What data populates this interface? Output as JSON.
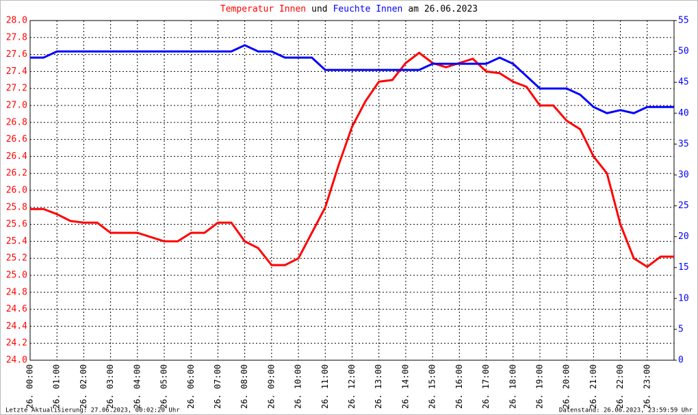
{
  "chart_data": {
    "type": "line",
    "title_parts": [
      {
        "text": "Temperatur Innen",
        "color": "#ff0000"
      },
      {
        "text": "und",
        "color": "#000000"
      },
      {
        "text": "Feuchte Innen",
        "color": "#0000ff"
      },
      {
        "text": "am 26.06.2023",
        "color": "#000000"
      }
    ],
    "footer_left": "Letzte Aktualisierung: 27.06.2023, 00:02:20 Uhr",
    "footer_right": "Datenstand: 26.06.2023, 23:59:59 Uhr",
    "x": [
      0,
      0.5,
      1,
      1.5,
      2,
      2.5,
      3,
      3.5,
      4,
      4.5,
      5,
      5.5,
      6,
      6.5,
      7,
      7.5,
      8,
      8.5,
      9,
      9.5,
      10,
      10.5,
      11,
      11.5,
      12,
      12.5,
      13,
      13.5,
      14,
      14.5,
      15,
      15.5,
      16,
      16.5,
      17,
      17.5,
      18,
      18.5,
      19,
      19.5,
      20,
      20.5,
      21,
      21.5,
      22,
      22.5,
      23,
      23.5,
      24
    ],
    "xlim": [
      0,
      24
    ],
    "xticks": [
      {
        "value": 0,
        "label": "26. 00:00"
      },
      {
        "value": 1,
        "label": "26. 01:00"
      },
      {
        "value": 2,
        "label": "26. 02:00"
      },
      {
        "value": 3,
        "label": "26. 03:00"
      },
      {
        "value": 4,
        "label": "26. 04:00"
      },
      {
        "value": 5,
        "label": "26. 05:00"
      },
      {
        "value": 6,
        "label": "26. 06:00"
      },
      {
        "value": 7,
        "label": "26. 07:00"
      },
      {
        "value": 8,
        "label": "26. 08:00"
      },
      {
        "value": 9,
        "label": "26. 09:00"
      },
      {
        "value": 10,
        "label": "26. 10:00"
      },
      {
        "value": 11,
        "label": "26. 11:00"
      },
      {
        "value": 12,
        "label": "26. 12:00"
      },
      {
        "value": 13,
        "label": "26. 13:00"
      },
      {
        "value": 14,
        "label": "26. 14:00"
      },
      {
        "value": 15,
        "label": "26. 15:00"
      },
      {
        "value": 16,
        "label": "26. 16:00"
      },
      {
        "value": 17,
        "label": "26. 17:00"
      },
      {
        "value": 18,
        "label": "26. 18:00"
      },
      {
        "value": 19,
        "label": "26. 19:00"
      },
      {
        "value": 20,
        "label": "26. 20:00"
      },
      {
        "value": 21,
        "label": "26. 21:00"
      },
      {
        "value": 22,
        "label": "26. 22:00"
      },
      {
        "value": 23,
        "label": "26. 23:00"
      }
    ],
    "ylim": [
      24,
      28
    ],
    "yticks": [
      {
        "value": 24,
        "label": "24.0"
      },
      {
        "value": 24.2,
        "label": "24.2"
      },
      {
        "value": 24.4,
        "label": "24.4"
      },
      {
        "value": 24.6,
        "label": "24.6"
      },
      {
        "value": 24.8,
        "label": "24.8"
      },
      {
        "value": 25,
        "label": "25.0"
      },
      {
        "value": 25.2,
        "label": "25.2"
      },
      {
        "value": 25.4,
        "label": "25.4"
      },
      {
        "value": 25.6,
        "label": "25.6"
      },
      {
        "value": 25.8,
        "label": "25.8"
      },
      {
        "value": 26,
        "label": "26.0"
      },
      {
        "value": 26.2,
        "label": "26.2"
      },
      {
        "value": 26.4,
        "label": "26.4"
      },
      {
        "value": 26.6,
        "label": "26.6"
      },
      {
        "value": 26.8,
        "label": "26.8"
      },
      {
        "value": 27,
        "label": "27.0"
      },
      {
        "value": 27.2,
        "label": "27.2"
      },
      {
        "value": 27.4,
        "label": "27.4"
      },
      {
        "value": 27.6,
        "label": "27.6"
      },
      {
        "value": 27.8,
        "label": "27.8"
      },
      {
        "value": 28,
        "label": "28.0"
      }
    ],
    "y2lim": [
      0,
      55
    ],
    "y2ticks": [
      0,
      5,
      10,
      15,
      20,
      25,
      30,
      35,
      40,
      45,
      50,
      55
    ],
    "grid": true,
    "series": [
      {
        "name": "Temperatur Innen",
        "color": "#ff0000",
        "values": [
          25.78,
          25.78,
          25.72,
          25.64,
          25.62,
          25.62,
          25.5,
          25.5,
          25.5,
          25.45,
          25.4,
          25.4,
          25.5,
          25.5,
          25.62,
          25.62,
          25.4,
          25.32,
          25.12,
          25.12,
          25.2,
          25.5,
          25.8,
          26.3,
          26.75,
          27.05,
          27.28,
          27.3,
          27.5,
          27.62,
          27.5,
          27.45,
          27.5,
          27.55,
          27.4,
          27.38,
          27.28,
          27.22,
          27.0,
          27.0,
          26.82,
          26.72,
          26.4,
          26.2,
          25.6,
          25.2,
          25.1,
          25.22,
          25.22
        ]
      },
      {
        "name": "Feuchte Innen",
        "color": "#0000ff",
        "axis": "y2",
        "values": [
          49,
          49,
          50,
          50,
          50,
          50,
          50,
          50,
          50,
          50,
          50,
          50,
          50,
          50,
          50,
          50,
          51,
          50,
          50,
          49,
          49,
          49,
          47,
          47,
          47,
          47,
          47,
          47,
          47,
          47,
          48,
          48,
          48,
          48,
          48,
          49,
          48,
          46,
          44,
          44,
          44,
          43,
          41,
          40,
          40.5,
          40,
          41,
          41,
          41
        ]
      }
    ]
  }
}
